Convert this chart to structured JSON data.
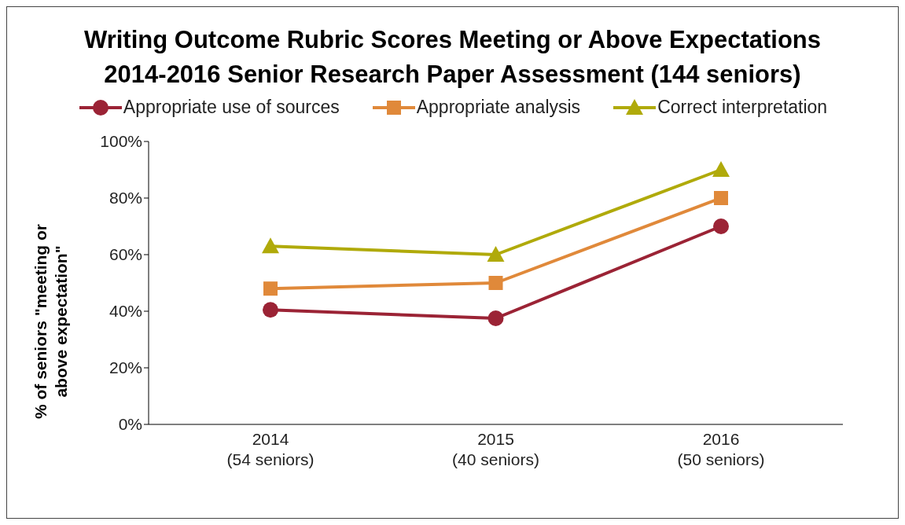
{
  "chart_data": {
    "type": "line",
    "title": "Writing Outcome Rubric Scores Meeting or Above Expectations",
    "subtitle": "2014-2016 Senior Research Paper Assessment (144 seniors)",
    "ylabel": "% of seniors \"meeting or above expectation\"",
    "categories": [
      "2014\n(54 seniors)",
      "2015\n(40 seniors)",
      "2016\n(50 seniors)"
    ],
    "series": [
      {
        "name": "Appropriate use of sources",
        "color": "#9b2335",
        "marker": "circle",
        "values": [
          40.5,
          37.5,
          70
        ]
      },
      {
        "name": "Appropriate analysis",
        "color": "#e0893a",
        "marker": "square",
        "values": [
          48,
          50,
          80
        ]
      },
      {
        "name": "Correct interpretation",
        "color": "#b0aa0a",
        "marker": "triangle",
        "values": [
          63,
          60,
          90
        ]
      }
    ],
    "ylim": [
      0,
      100
    ],
    "yticks": [
      {
        "value": 0,
        "label": "0%"
      },
      {
        "value": 20,
        "label": "20%"
      },
      {
        "value": 40,
        "label": "40%"
      },
      {
        "value": 60,
        "label": "60%"
      },
      {
        "value": 80,
        "label": "80%"
      },
      {
        "value": 100,
        "label": "100%"
      }
    ],
    "legend": "top"
  }
}
